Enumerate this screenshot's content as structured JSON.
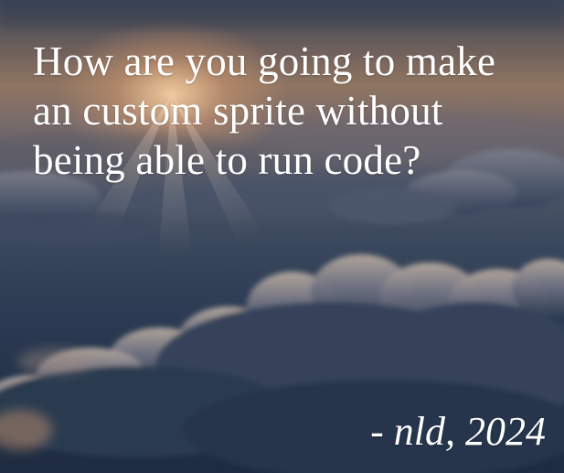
{
  "quote": {
    "lines": [
      "How are you going to make",
      "an custom sprite without",
      "being able to run code?"
    ]
  },
  "attribution": "- nld, 2024",
  "colors": {
    "text": "#ffffff",
    "sky_top": "#3b4659",
    "sunlight": "#f5cda0",
    "sky_bottom": "#1e2b40",
    "cloud_light": "#b7a99e",
    "cloud_shadow": "#2e3c52"
  },
  "background": {
    "scene": "sunset-clouds"
  }
}
